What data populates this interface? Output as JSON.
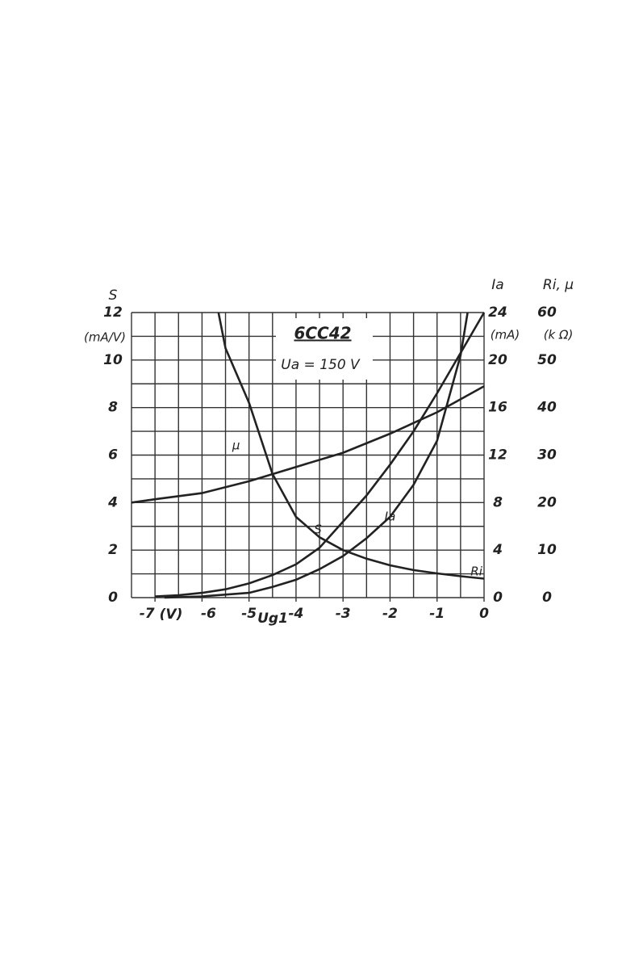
{
  "chart_data": {
    "type": "line",
    "title": "6CC42",
    "subtitle": "Ua = 150 V",
    "xlabel": "Ug1",
    "x_unit": "(V)",
    "ylabel": "S",
    "y_unit": "(mA/V)",
    "y2label": "Ia",
    "y2_unit": "(mA)",
    "y3label": "Ri, μ",
    "y3_unit": "(k Ω)",
    "xlim": [
      -7.5,
      0
    ],
    "xticks": [
      -7,
      -6,
      -5,
      -4,
      -3,
      -2,
      -1,
      0
    ],
    "ylim": [
      0,
      12
    ],
    "yticks": [
      0,
      2,
      4,
      6,
      8,
      10,
      12
    ],
    "y2lim": [
      0,
      24
    ],
    "y2ticks": [
      0,
      4,
      8,
      12,
      16,
      20,
      24
    ],
    "y3lim": [
      0,
      60
    ],
    "y3ticks": [
      0,
      10,
      20,
      30,
      40,
      50,
      60
    ],
    "xgrid": [
      -7.5,
      -7,
      -6.5,
      -6,
      -5.5,
      -5,
      -4.5,
      -4,
      -3.5,
      -3,
      -2.5,
      -2,
      -1.5,
      -1,
      -0.5,
      0
    ],
    "ygrid": [
      0,
      1,
      2,
      3,
      4,
      5,
      6,
      7,
      8,
      9,
      10,
      11,
      12
    ],
    "grid": true,
    "series": [
      {
        "name": "μ",
        "color": "#222222",
        "axis": "y3",
        "x": [
          -7.5,
          -7,
          -6,
          -5,
          -4,
          -3,
          -2,
          -1,
          0
        ],
        "values": [
          20,
          20.7,
          22,
          24.5,
          27.5,
          30.5,
          34.5,
          39,
          44.5
        ]
      },
      {
        "name": "Ri",
        "color": "#222222",
        "axis": "y3",
        "x": [
          -5.65,
          -5.5,
          -5,
          -4.5,
          -4,
          -3.5,
          -3,
          -2.5,
          -2,
          -1.5,
          -1,
          -0.5,
          0
        ],
        "values": [
          60,
          52.5,
          41,
          26,
          17,
          12.7,
          10,
          8.2,
          6.8,
          5.8,
          5.1,
          4.5,
          4
        ]
      },
      {
        "name": "S",
        "color": "#222222",
        "axis": "y",
        "x": [
          -7,
          -6.5,
          -6,
          -5.5,
          -5,
          -4.5,
          -4,
          -3.5,
          -3,
          -2.5,
          -2,
          -1.5,
          -1,
          -0.5,
          0
        ],
        "values": [
          0.05,
          0.1,
          0.2,
          0.35,
          0.6,
          0.95,
          1.4,
          2.1,
          3.2,
          4.3,
          5.6,
          7,
          8.6,
          10.3,
          12
        ]
      },
      {
        "name": "Ia",
        "color": "#222222",
        "axis": "y2",
        "x": [
          -6.8,
          -6,
          -5,
          -4.5,
          -4,
          -3.5,
          -3,
          -2.5,
          -2,
          -1.5,
          -1,
          -0.5,
          -0.35
        ],
        "values": [
          0,
          0.1,
          0.4,
          0.9,
          1.5,
          2.4,
          3.5,
          5,
          6.8,
          9.5,
          13.2,
          20.4,
          24
        ]
      }
    ]
  }
}
